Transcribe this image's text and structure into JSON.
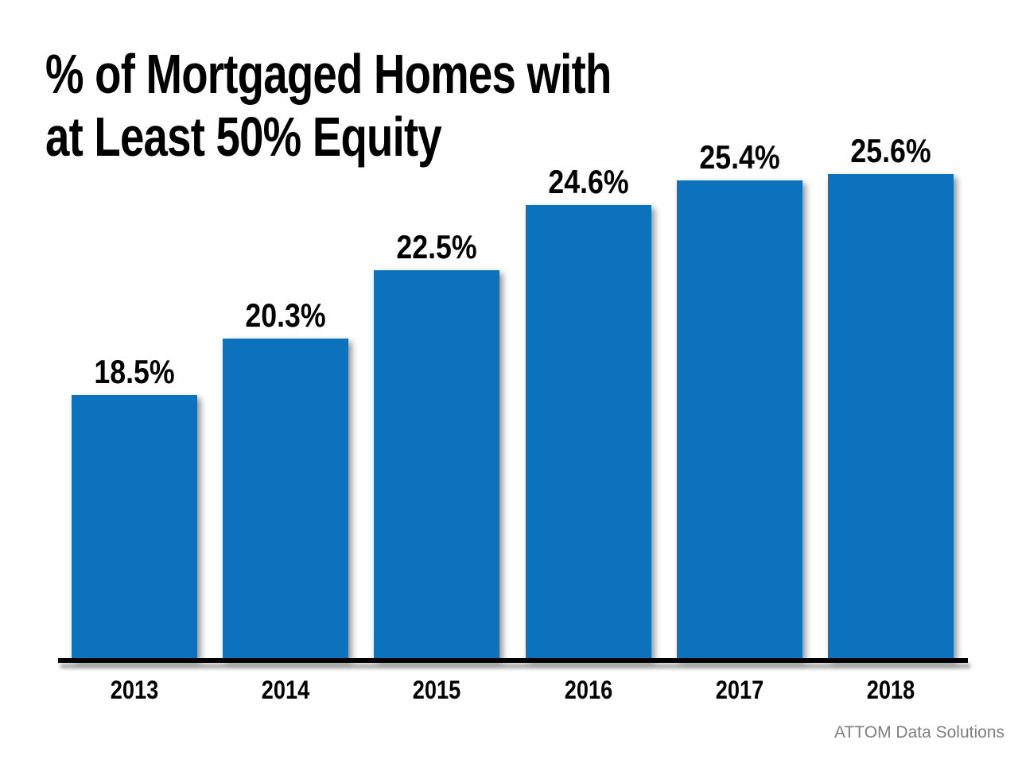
{
  "title": {
    "line1": "% of Mortgaged Homes with",
    "line2": "at Least 50% Equity"
  },
  "attribution": "ATTOM Data Solutions",
  "colors": {
    "bar_fill": "#0C72BE",
    "title_text": "#000000",
    "label_text": "#000000",
    "axis_line": "#000000",
    "attribution_text": "#7F7F7F",
    "background": "#FFFFFF"
  },
  "chart_data": {
    "type": "bar",
    "title": "% of Mortgaged Homes with at Least 50% Equity",
    "categories": [
      "2013",
      "2014",
      "2015",
      "2016",
      "2017",
      "2018"
    ],
    "values": [
      18.5,
      20.3,
      22.5,
      24.6,
      25.4,
      25.6
    ],
    "data_labels": [
      "18.5%",
      "20.3%",
      "22.5%",
      "24.6%",
      "25.4%",
      "25.6%"
    ],
    "xlabel": "",
    "ylabel": "",
    "ylim": [
      10,
      27
    ],
    "grid": false,
    "legend": "none",
    "bar_color": "#0C72BE",
    "source": "ATTOM Data Solutions"
  }
}
